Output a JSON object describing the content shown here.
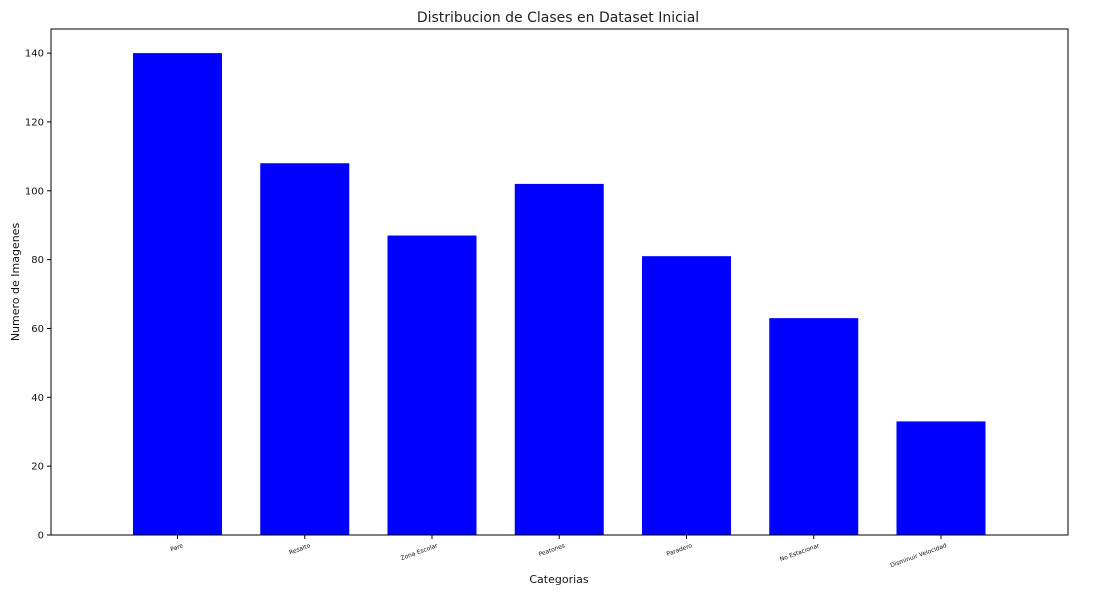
{
  "chart_data": {
    "type": "bar",
    "title": "Distribucion de Clases en Dataset Inicial",
    "xlabel": "Categorias",
    "ylabel": "Numero de Imagenes",
    "categories": [
      "Pare",
      "Resalto",
      "Zona Escolar",
      "Peatones",
      "Paradero",
      "No Estacionar",
      "Disminuir Velocidad"
    ],
    "values": [
      140,
      108,
      87,
      102,
      81,
      63,
      33
    ],
    "ylim": [
      0,
      147
    ],
    "yticks": [
      "0",
      "20",
      "40",
      "60",
      "80",
      "100",
      "120",
      "140"
    ],
    "bar_color": "#0000ff",
    "grid": false,
    "legend": false
  }
}
